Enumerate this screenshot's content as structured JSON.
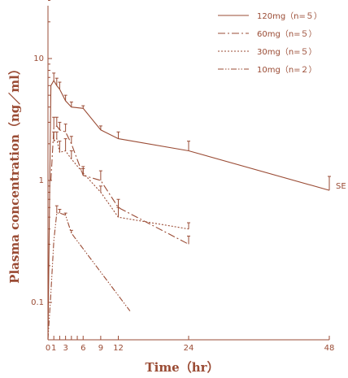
{
  "chart_data": {
    "type": "line",
    "title": "",
    "xlabel": "Time（hr）",
    "ylabel": "Plasma concentration（ng／ml）",
    "x_ticks": [
      0,
      1,
      2,
      3,
      4,
      5,
      6,
      9,
      12,
      24,
      48
    ],
    "x_tick_labels": [
      "0",
      "1",
      "",
      "3",
      "",
      "",
      "6",
      "9",
      "12",
      "24",
      "48"
    ],
    "xlim": [
      0,
      48
    ],
    "ylim": [
      0.05,
      35
    ],
    "y_scale": "log",
    "y_ticks": [
      0.1,
      1,
      10
    ],
    "y_tick_labels": [
      "0.1",
      "1",
      "10"
    ],
    "annotation": "SE",
    "legend_position": "top-right",
    "line_color": "#9a4b34",
    "series": [
      {
        "name": "120mg（n=５）",
        "style": "solid",
        "x": [
          0,
          0.5,
          1,
          1.5,
          2,
          3,
          4,
          6,
          9,
          12,
          24,
          48
        ],
        "y": [
          0.05,
          6.0,
          6.6,
          6.0,
          5.6,
          4.5,
          4.0,
          3.9,
          2.6,
          2.2,
          1.75,
          0.83
        ],
        "se": [
          0,
          0,
          1.0,
          0.9,
          0.8,
          0.5,
          0.4,
          0.2,
          0.2,
          0.3,
          0.35,
          0.25
        ]
      },
      {
        "name": "60mg（n=５）",
        "style": "dashdot",
        "x": [
          0.5,
          1,
          1.5,
          2,
          3,
          4,
          6,
          9,
          12,
          24
        ],
        "y": [
          1.0,
          2.7,
          2.8,
          2.6,
          2.5,
          2.0,
          1.1,
          1.0,
          0.6,
          0.3
        ],
        "se": [
          0,
          0.6,
          0.5,
          0.4,
          0.4,
          0.3,
          0.15,
          0.2,
          0.1,
          0.05
        ]
      },
      {
        "name": "30mg（n=５）",
        "style": "dotted",
        "x": [
          1,
          1.5,
          2,
          3,
          4,
          6,
          9,
          12,
          24
        ],
        "y": [
          2.1,
          2.2,
          1.7,
          1.75,
          1.5,
          1.15,
          0.8,
          0.5,
          0.4
        ],
        "se": [
          0.4,
          0.3,
          0.4,
          0.45,
          0.25,
          0.15,
          0.1,
          0.1,
          0.05
        ]
      },
      {
        "name": "10mg（n=２）",
        "style": "dashdotdot",
        "x": [
          0,
          0.5,
          1,
          1.5,
          2,
          3,
          4,
          14
        ],
        "y": [
          0.05,
          0.12,
          0.32,
          0.54,
          0.54,
          0.52,
          0.37,
          0.085
        ],
        "se": [
          0,
          0,
          0,
          0.08,
          0.04,
          0.02,
          0.02,
          0
        ]
      }
    ]
  }
}
